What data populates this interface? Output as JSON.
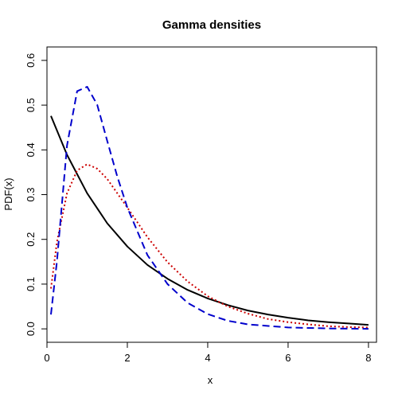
{
  "chart_data": {
    "type": "line",
    "title": "Gamma densities",
    "xlabel": "x",
    "ylabel": "PDF(x)",
    "xlim": [
      0,
      8.2
    ],
    "ylim": [
      -0.03,
      0.63
    ],
    "xticks": [
      "0",
      "2",
      "4",
      "6",
      "8"
    ],
    "yticks": [
      "0.0",
      "0.1",
      "0.2",
      "0.3",
      "0.4",
      "0.5",
      "0.6"
    ],
    "legend": "none",
    "grid": false,
    "series": [
      {
        "color": "#000000",
        "line_style": "solid",
        "x": [
          0.1,
          0.5,
          1.0,
          1.5,
          2.0,
          2.5,
          3.0,
          3.5,
          4.0,
          4.5,
          5.0,
          5.5,
          6.0,
          6.5,
          7.0,
          7.5,
          8.0
        ],
        "y": [
          0.476,
          0.389,
          0.303,
          0.236,
          0.184,
          0.143,
          0.112,
          0.087,
          0.068,
          0.053,
          0.041,
          0.032,
          0.025,
          0.019,
          0.015,
          0.012,
          0.009
        ]
      },
      {
        "color": "#cc0000",
        "line_style": "dotted",
        "x": [
          0.1,
          0.25,
          0.5,
          0.75,
          1.0,
          1.25,
          1.5,
          2.0,
          2.5,
          3.0,
          3.5,
          4.0,
          4.5,
          5.0,
          5.5,
          6.0,
          6.5,
          7.0,
          7.5,
          8.0
        ],
        "y": [
          0.09,
          0.195,
          0.303,
          0.354,
          0.368,
          0.358,
          0.335,
          0.271,
          0.205,
          0.149,
          0.106,
          0.073,
          0.05,
          0.034,
          0.022,
          0.015,
          0.01,
          0.006,
          0.004,
          0.003
        ],
        "dash": "2 3"
      },
      {
        "color": "#0000cc",
        "line_style": "dashed",
        "x": [
          0.1,
          0.25,
          0.5,
          0.75,
          1.0,
          1.25,
          1.5,
          1.75,
          2.0,
          2.5,
          3.0,
          3.5,
          4.0,
          4.5,
          5.0,
          6.0,
          7.0,
          8.0
        ],
        "y": [
          0.032,
          0.152,
          0.41,
          0.531,
          0.541,
          0.501,
          0.42,
          0.34,
          0.271,
          0.165,
          0.1,
          0.058,
          0.033,
          0.018,
          0.01,
          0.003,
          0.001,
          0.0
        ],
        "dash": "9 5"
      }
    ]
  }
}
